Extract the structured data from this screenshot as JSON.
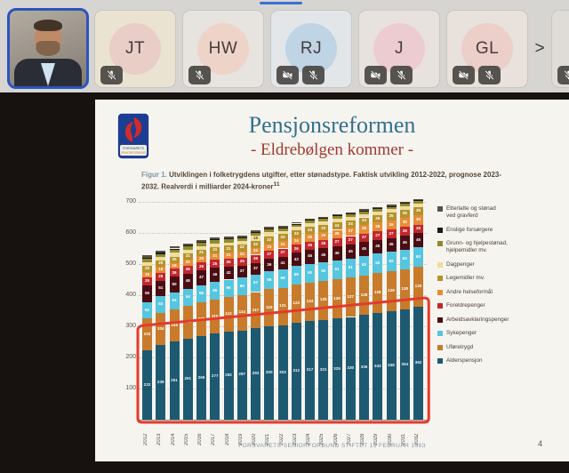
{
  "meeting": {
    "accent_color": "#3b6fd4",
    "chevron_label": ">",
    "participants": [
      {
        "id": "speaker-video",
        "type": "video",
        "active_speaker": true,
        "icons": []
      },
      {
        "id": "jt",
        "type": "initials",
        "initials": "JT",
        "icons": [
          "mic-off"
        ],
        "tile_bg": "#eae3d2",
        "avatar_bg": "#e9cdc7"
      },
      {
        "id": "hw",
        "type": "initials",
        "initials": "HW",
        "icons": [
          "mic-off"
        ],
        "tile_bg": "#e7e3de",
        "avatar_bg": "#eed3c8"
      },
      {
        "id": "rj",
        "type": "initials",
        "initials": "RJ",
        "icons": [
          "camera-off",
          "mic-off"
        ],
        "tile_bg": "#e2e6e9",
        "avatar_bg": "#bfd4e5"
      },
      {
        "id": "j",
        "type": "initials",
        "initials": "J",
        "icons": [
          "camera-off",
          "mic-off"
        ],
        "tile_bg": "#e8e2df",
        "avatar_bg": "#ecccd1"
      },
      {
        "id": "gl",
        "type": "initials",
        "initials": "GL",
        "icons": [
          "camera-off",
          "mic-off"
        ],
        "tile_bg": "#e9e1dc",
        "avatar_bg": "#eccfc9"
      }
    ],
    "overflow_tile": {
      "tile_bg": "#dfdbd6",
      "icons": [
        "mic-off"
      ]
    }
  },
  "slide": {
    "title": "Pensjonsreformen",
    "subtitle": "- Eldrebølgen kommer -",
    "caption_label": "Figur 1.",
    "caption_line1": " Utviklingen i folketrygdens utgifter, etter stønadstype. Faktisk utvikling 2012-2022, prognose 2023-",
    "caption_line2": "2032. Realverdi i milliarder 2024-kroner",
    "caption_superscript": "11",
    "footer": "FORSVARETS SENIORFORBUND STIFTET 15 FEBRUAR 1983",
    "page_number": "4",
    "logo": {
      "text_top": "FORSVARETS",
      "text_bottom": "SENIORFORBUND",
      "bg": "#1c3d90",
      "flame": "#d22b2b"
    }
  },
  "chart_data": {
    "type": "bar",
    "stacked": true,
    "title": "",
    "xlabel": "",
    "ylabel": "",
    "ylim": [
      0,
      700
    ],
    "yticks": [
      100,
      200,
      300,
      400,
      500,
      600,
      700
    ],
    "grid": true,
    "legend_position": "right",
    "categories": [
      "2012",
      "2013",
      "2014",
      "2015",
      "2016",
      "2017",
      "2018",
      "2019",
      "2020",
      "2021",
      "2022",
      "2023",
      "2024",
      "2025",
      "2026",
      "2027",
      "2028",
      "2029",
      "2030",
      "2031",
      "2032"
    ],
    "series": [
      {
        "name": "Alderspensjon",
        "color": "#1d5a72",
        "label_color": "#e9f1f3",
        "values": [
          222,
          239,
          251,
          261,
          269,
          277,
          282,
          287,
          293,
          300,
          303,
          312,
          317,
          321,
          325,
          330,
          336,
          343,
          348,
          354,
          362
        ]
      },
      {
        "name": "Uføretrygd",
        "color": "#c87b2b",
        "label_color": "#ffffff",
        "values": [
          103,
          104,
          104,
          105,
          108,
          110,
          112,
          114,
          117,
          119,
          121,
          122,
          124,
          125,
          126,
          127,
          128,
          128,
          129,
          130,
          130
        ]
      },
      {
        "name": "Sykepenger",
        "color": "#55c6e0",
        "label_color": "#ffffff",
        "values": [
          52,
          53,
          54,
          54,
          55,
          55,
          56,
          56,
          57,
          58,
          58,
          59,
          60,
          60,
          61,
          61,
          62,
          62,
          62,
          62,
          62
        ]
      },
      {
        "name": "Arbeidsavklaringspenger",
        "color": "#4a0d13",
        "label_color": "#ffffff",
        "values": [
          55,
          51,
          50,
          48,
          47,
          46,
          42,
          37,
          37,
          39,
          41,
          43,
          45,
          45,
          45,
          45,
          45,
          45,
          45,
          45,
          45
        ]
      },
      {
        "name": "Foreldrepenger",
        "color": "#c1272d",
        "label_color": "#ffffff",
        "values": [
          25,
          25,
          26,
          26,
          26,
          25,
          25,
          25,
          26,
          27,
          27,
          26,
          26,
          26,
          27,
          27,
          27,
          27,
          27,
          28,
          28
        ]
      },
      {
        "name": "Andre helseformål",
        "color": "#e78c35",
        "label_color": "#ffffff",
        "values": [
          18,
          19,
          19,
          20,
          20,
          21,
          21,
          22,
          22,
          23,
          24,
          24,
          25,
          26,
          26,
          27,
          28,
          28,
          29,
          30,
          30
        ]
      },
      {
        "name": "Legemidler mv.",
        "color": "#b5922a",
        "label_color": "#ffffff",
        "values": [
          20,
          20,
          20,
          21,
          21,
          21,
          21,
          22,
          22,
          22,
          22,
          23,
          23,
          23,
          24,
          24,
          24,
          25,
          25,
          26,
          26
        ]
      },
      {
        "name": "Dagpenger",
        "color": "#f0dd9e",
        "label_color": "#6b5617",
        "values": [
          11,
          11,
          12,
          12,
          12,
          11,
          10,
          10,
          18,
          14,
          9,
          10,
          11,
          11,
          11,
          11,
          11,
          11,
          11,
          11,
          11
        ]
      },
      {
        "name": "Grunn- og hjelpestønad, hjelpemidler mv.",
        "color": "#8f8b2d",
        "label_color": "#ffffff",
        "values": [
          10,
          10,
          10,
          10,
          10,
          10,
          10,
          10,
          10,
          10,
          10,
          9,
          9,
          9,
          9,
          9,
          9,
          9,
          9,
          9,
          9
        ]
      },
      {
        "name": "Enslige forsørgere",
        "color": "#1a1a1a",
        "label_color": "#ffffff",
        "values": [
          4,
          4,
          4,
          3,
          3,
          3,
          3,
          3,
          2,
          2,
          2,
          2,
          2,
          2,
          2,
          2,
          2,
          2,
          2,
          2,
          2
        ]
      },
      {
        "name": "Etterlatte og stønad ved gravferd",
        "color": "#595148",
        "label_color": "#ffffff",
        "values": [
          8,
          8,
          7,
          7,
          7,
          6,
          6,
          6,
          5,
          5,
          5,
          4,
          4,
          4,
          4,
          4,
          4,
          4,
          4,
          4,
          4
        ]
      }
    ],
    "legend_top_to_bottom": [
      {
        "label": "Etterlatte og stønad\nved gravferd",
        "color": "#595148"
      },
      {
        "label": "Enslige forsørgere",
        "color": "#1a1a1a"
      },
      {
        "label": "Grunn- og hjelpestønad,\nhjelpemidler mv.",
        "color": "#8f8b2d"
      },
      {
        "label": "Dagpenger",
        "color": "#f0dd9e"
      },
      {
        "label": "Legemidler mv.",
        "color": "#b5922a"
      },
      {
        "label": "Andre helseformål",
        "color": "#e78c35"
      },
      {
        "label": "Foreldrepenger",
        "color": "#c1272d"
      },
      {
        "label": "Arbeidsavklaringspenger",
        "color": "#4a0d13"
      },
      {
        "label": "Sykepenger",
        "color": "#55c6e0"
      },
      {
        "label": "Uføretrygd",
        "color": "#c87b2b"
      },
      {
        "label": "Alderspensjon",
        "color": "#1d5a72"
      }
    ],
    "annotation": {
      "shape": "red-outline-box",
      "color": "#e23b2e",
      "highlights": "Alderspensjon"
    }
  }
}
